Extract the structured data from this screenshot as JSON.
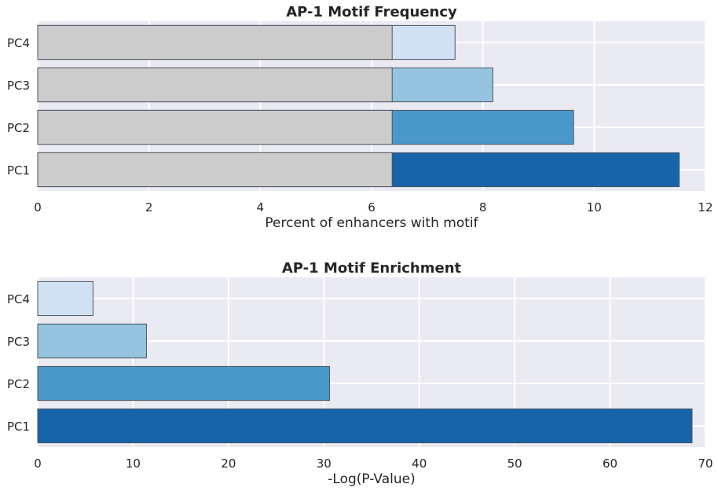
{
  "chart_data": [
    {
      "type": "bar",
      "orientation": "horizontal",
      "stacked_overlay": true,
      "title": "AP-1 Motif Frequency",
      "xlabel": "Percent of enhancers with motif",
      "ylabel": "",
      "xlim": [
        0,
        12
      ],
      "xticks": [
        0,
        2,
        4,
        6,
        8,
        10,
        12
      ],
      "categories": [
        "PC1",
        "PC2",
        "PC3",
        "PC4"
      ],
      "baseline_value": 6.37,
      "values": [
        11.53,
        9.63,
        8.18,
        7.5
      ],
      "colors": [
        "#1764ab",
        "#4a98c9",
        "#94c4df",
        "#cfe1f2"
      ],
      "baseline_color": "#cccccc",
      "grid": true
    },
    {
      "type": "bar",
      "orientation": "horizontal",
      "title": "AP-1 Motif Enrichment",
      "xlabel": "-Log(P-Value)",
      "ylabel": "",
      "xlim": [
        0,
        70
      ],
      "xticks": [
        0,
        10,
        20,
        30,
        40,
        50,
        60,
        70
      ],
      "categories": [
        "PC1",
        "PC2",
        "PC3",
        "PC4"
      ],
      "values": [
        68.6,
        30.6,
        11.4,
        5.8
      ],
      "colors": [
        "#1764ab",
        "#4a98c9",
        "#94c4df",
        "#cfe1f2"
      ],
      "grid": true
    }
  ]
}
